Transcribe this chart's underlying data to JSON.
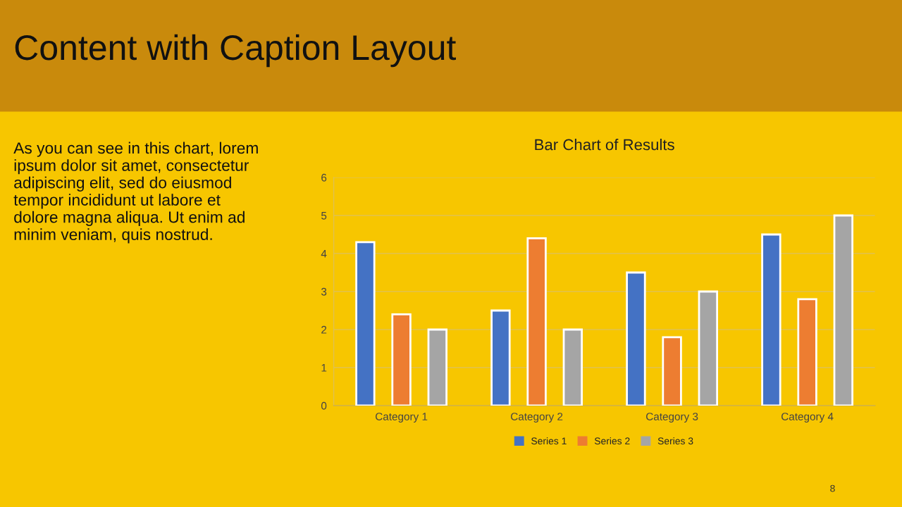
{
  "chart_data": {
    "type": "bar",
    "title": "Bar Chart of Results",
    "categories": [
      "Category 1",
      "Category 2",
      "Category 3",
      "Category 4"
    ],
    "series": [
      {
        "name": "Series 1",
        "color": "#4472c4",
        "values": [
          4.3,
          2.5,
          3.5,
          4.5
        ]
      },
      {
        "name": "Series 2",
        "color": "#ed7d31",
        "values": [
          2.4,
          4.4,
          1.8,
          2.8
        ]
      },
      {
        "name": "Series 3",
        "color": "#a5a5a5",
        "values": [
          2,
          2,
          3,
          5
        ]
      }
    ],
    "ylim": [
      0,
      6
    ],
    "yticks": [
      0,
      1,
      2,
      3,
      4,
      5,
      6
    ],
    "grid": "y",
    "legend": "bottom",
    "annotations": [
      "Content with Caption Layout",
      "As you can see in this chart, lorem\nipsum dolor sit amet, consectetur\nadipiscing elit, sed do eiusmod\ntempor incididunt ut labore et\ndolore magna aliqua. Ut enim ad\nminim veniam, quis nostrud.",
      "8"
    ]
  }
}
